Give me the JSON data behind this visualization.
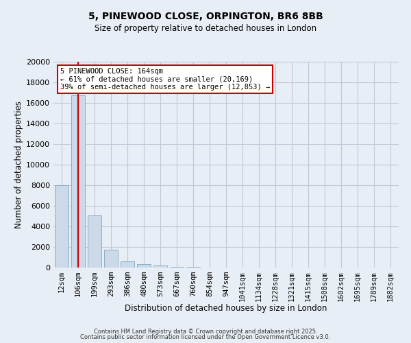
{
  "title_line1": "5, PINEWOOD CLOSE, ORPINGTON, BR6 8BB",
  "title_line2": "Size of property relative to detached houses in London",
  "xlabel": "Distribution of detached houses by size in London",
  "ylabel": "Number of detached properties",
  "bar_color": "#ccd9e8",
  "bar_edge_color": "#8aaec8",
  "property_line_color": "#cc0000",
  "property_bin_index": 1,
  "annotation_text": "5 PINEWOOD CLOSE: 164sqm\n← 61% of detached houses are smaller (20,169)\n39% of semi-detached houses are larger (12,853) →",
  "annotation_box_color": "white",
  "annotation_box_edge_color": "#cc0000",
  "categories": [
    "12sqm",
    "106sqm",
    "199sqm",
    "293sqm",
    "386sqm",
    "480sqm",
    "573sqm",
    "667sqm",
    "760sqm",
    "854sqm",
    "947sqm",
    "1041sqm",
    "1134sqm",
    "1228sqm",
    "1321sqm",
    "1415sqm",
    "1508sqm",
    "1602sqm",
    "1695sqm",
    "1789sqm",
    "1882sqm"
  ],
  "values": [
    8000,
    16700,
    5100,
    1750,
    600,
    350,
    200,
    100,
    50,
    0,
    0,
    0,
    0,
    0,
    0,
    0,
    0,
    0,
    0,
    0,
    0
  ],
  "ylim": [
    0,
    20000
  ],
  "yticks": [
    0,
    2000,
    4000,
    6000,
    8000,
    10000,
    12000,
    14000,
    16000,
    18000,
    20000
  ],
  "grid_color": "#c0c8d8",
  "footer_line1": "Contains HM Land Registry data © Crown copyright and database right 2025.",
  "footer_line2": "Contains public sector information licensed under the Open Government Licence v3.0.",
  "background_color": "#e8eef5"
}
